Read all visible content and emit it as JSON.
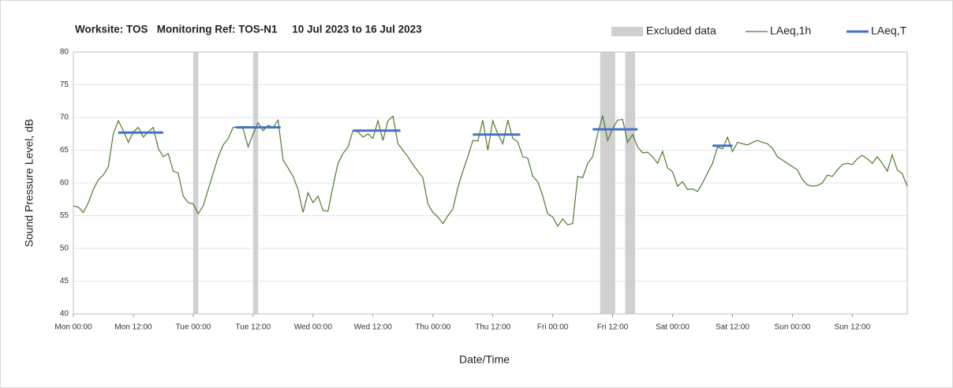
{
  "chart_data": {
    "type": "line",
    "title": "Worksite: TOS   Monitoring Ref: TOS-N1     10 Jul 2023 to 16 Jul 2023",
    "xlabel": "Date/Time",
    "ylabel": "Sound Pressure Level, dB",
    "xlim": [
      0,
      167
    ],
    "ylim": [
      40,
      80
    ],
    "yticks": [
      40,
      45,
      50,
      55,
      60,
      65,
      70,
      75,
      80
    ],
    "xticks": [
      {
        "value": 0,
        "label": "Mon 00:00"
      },
      {
        "value": 12,
        "label": "Mon 12:00"
      },
      {
        "value": 24,
        "label": "Tue 00:00"
      },
      {
        "value": 36,
        "label": "Tue 12:00"
      },
      {
        "value": 48,
        "label": "Wed 00:00"
      },
      {
        "value": 60,
        "label": "Wed 12:00"
      },
      {
        "value": 72,
        "label": "Thu 00:00"
      },
      {
        "value": 84,
        "label": "Thu 12:00"
      },
      {
        "value": 96,
        "label": "Fri 00:00"
      },
      {
        "value": 108,
        "label": "Fri 12:00"
      },
      {
        "value": 120,
        "label": "Sat 00:00"
      },
      {
        "value": 132,
        "label": "Sat 12:00"
      },
      {
        "value": 144,
        "label": "Sun 00:00"
      },
      {
        "value": 156,
        "label": "Sun 12:00"
      }
    ],
    "grid": true,
    "excluded": {
      "name": "Excluded data",
      "color": "#d0d0d0",
      "ranges": [
        [
          24,
          25
        ],
        [
          36,
          37
        ],
        [
          105.5,
          108.5
        ],
        [
          110.5,
          112.5
        ]
      ]
    },
    "series": [
      {
        "name": "LAeq,1h",
        "color": "#4f7a2e",
        "x": [
          0,
          1,
          2,
          3,
          4,
          5,
          6,
          7,
          8,
          9,
          10,
          11,
          12,
          13,
          14,
          15,
          16,
          17,
          18,
          19,
          20,
          21,
          22,
          23,
          24,
          25,
          26,
          27,
          28,
          29,
          30,
          31,
          32,
          33,
          34,
          35,
          36,
          37,
          38,
          39,
          40,
          41,
          42,
          43,
          44,
          45,
          46,
          47,
          48,
          49,
          50,
          51,
          52,
          53,
          54,
          55,
          56,
          57,
          58,
          59,
          60,
          61,
          62,
          63,
          64,
          65,
          66,
          67,
          68,
          69,
          70,
          71,
          72,
          73,
          74,
          75,
          76,
          77,
          78,
          79,
          80,
          81,
          82,
          83,
          84,
          85,
          86,
          87,
          88,
          89,
          90,
          91,
          92,
          93,
          94,
          95,
          96,
          97,
          98,
          99,
          100,
          101,
          102,
          103,
          104,
          105,
          106,
          107,
          108,
          109,
          110,
          111,
          112,
          113,
          114,
          115,
          116,
          117,
          118,
          119,
          120,
          121,
          122,
          123,
          124,
          125,
          126,
          127,
          128,
          129,
          130,
          131,
          132,
          133,
          134,
          135,
          136,
          137,
          138,
          139,
          140,
          141,
          142,
          143,
          144,
          145,
          146,
          147,
          148,
          149,
          150,
          151,
          152,
          153,
          154,
          155,
          156,
          157,
          158,
          159,
          160,
          161,
          162,
          163,
          164,
          165,
          166,
          167
        ],
        "values": [
          56.5,
          56.3,
          55.5,
          57,
          59,
          60.5,
          61.2,
          62.5,
          67.5,
          69.5,
          68,
          66.2,
          67.8,
          68.5,
          67,
          67.8,
          68.5,
          65.3,
          64,
          64.5,
          61.8,
          61.5,
          58,
          57,
          56.8,
          55.3,
          56.5,
          59,
          61.5,
          64,
          65.8,
          66.8,
          68.5,
          68.5,
          68.3,
          65.5,
          67.5,
          69.2,
          68,
          68.8,
          68.5,
          69.6,
          63.5,
          62.3,
          61,
          59,
          55.5,
          58.5,
          57,
          58,
          55.8,
          55.7,
          59.5,
          63,
          64.5,
          65.5,
          68,
          67.8,
          67,
          67.5,
          66.8,
          69.5,
          66.5,
          69.5,
          70.2,
          66,
          65,
          64,
          62.8,
          61.8,
          60.8,
          56.8,
          55.5,
          54.8,
          53.8,
          55,
          56,
          59.3,
          61.8,
          64,
          66.5,
          66.4,
          69.6,
          65,
          69.5,
          67.5,
          66,
          69.6,
          66.8,
          66.3,
          64,
          63.8,
          61,
          60.2,
          58,
          55.3,
          54.8,
          53.4,
          54.5,
          53.6,
          53.8,
          61,
          60.8,
          63,
          64,
          67.5,
          70.3,
          66.5,
          68.3,
          69.6,
          69.7,
          66.2,
          67.4,
          65.5,
          64.6,
          64.7,
          64,
          63,
          64.8,
          62.3,
          61.7,
          59.5,
          60.2,
          59,
          59.1,
          58.7,
          60,
          61.5,
          63,
          65.5,
          65.2,
          67,
          64.8,
          66.2,
          66,
          65.8,
          66.2,
          66.5,
          66.2,
          66,
          65.3,
          64,
          63.5,
          63,
          62.5,
          62,
          60.5,
          59.7,
          59.5,
          59.6,
          60,
          61.2,
          61,
          62,
          62.8,
          63,
          62.8,
          63.7,
          64.2,
          63.7,
          63,
          64,
          63,
          61.8,
          64.3,
          62,
          61.4,
          59.5
        ]
      },
      {
        "name": "LAeq,T",
        "color": "#4472c4",
        "segments": [
          {
            "x": [
              9,
              18
            ],
            "value": 67.7
          },
          {
            "x": [
              32.5,
              41.5
            ],
            "value": 68.5
          },
          {
            "x": [
              56,
              65.5
            ],
            "value": 68.0
          },
          {
            "x": [
              80,
              89.5
            ],
            "value": 67.4
          },
          {
            "x": [
              104,
              113
            ],
            "value": 68.2
          },
          {
            "x": [
              128,
              132
            ],
            "value": 65.7
          }
        ]
      }
    ]
  }
}
